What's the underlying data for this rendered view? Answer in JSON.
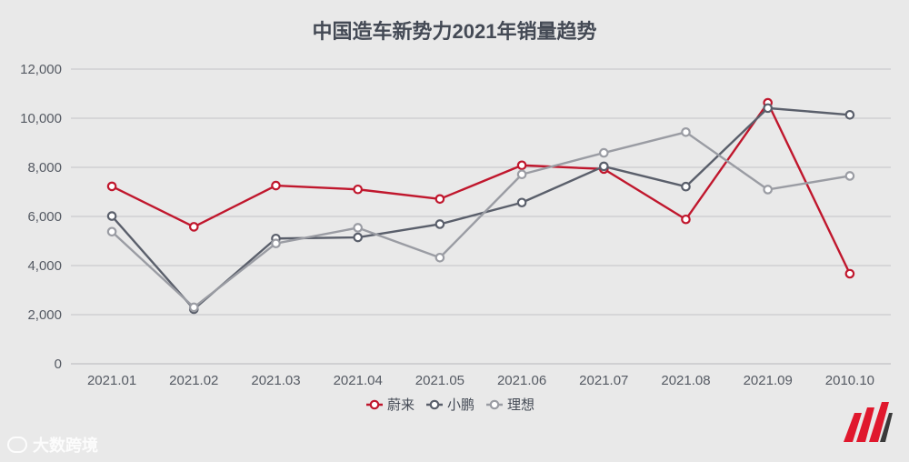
{
  "chart_data": {
    "type": "line",
    "title": "中国造车新势力2021年销量趋势",
    "categories": [
      "2021.01",
      "2021.02",
      "2021.03",
      "2021.04",
      "2021.05",
      "2021.06",
      "2021.07",
      "2021.08",
      "2021.09",
      "2010.10"
    ],
    "series": [
      {
        "name": "蔚来",
        "color": "#c0172d",
        "values": [
          7225,
          5578,
          7257,
          7102,
          6711,
          8083,
          7931,
          5880,
          10628,
          3667
        ]
      },
      {
        "name": "小鹏",
        "color": "#5a5f6b",
        "values": [
          6015,
          2223,
          5102,
          5147,
          5686,
          6565,
          8040,
          7214,
          10412,
          10138
        ]
      },
      {
        "name": "理想",
        "color": "#9a9ca3",
        "values": [
          5379,
          2300,
          4900,
          5539,
          4323,
          7713,
          8589,
          9433,
          7094,
          7649
        ]
      }
    ],
    "yticks": [
      "0",
      "2,000",
      "4,000",
      "6,000",
      "8,000",
      "10,000",
      "12,000"
    ],
    "ylim": [
      0,
      12000
    ],
    "grid": true,
    "legend_position": "bottom-center"
  },
  "watermark": {
    "text": "大数跨境",
    "icon": "wechat-channel-icon"
  },
  "logo": {
    "icon": "brand-m-logo-icon",
    "colors": [
      "#e0182d",
      "#3a3a3a"
    ]
  }
}
